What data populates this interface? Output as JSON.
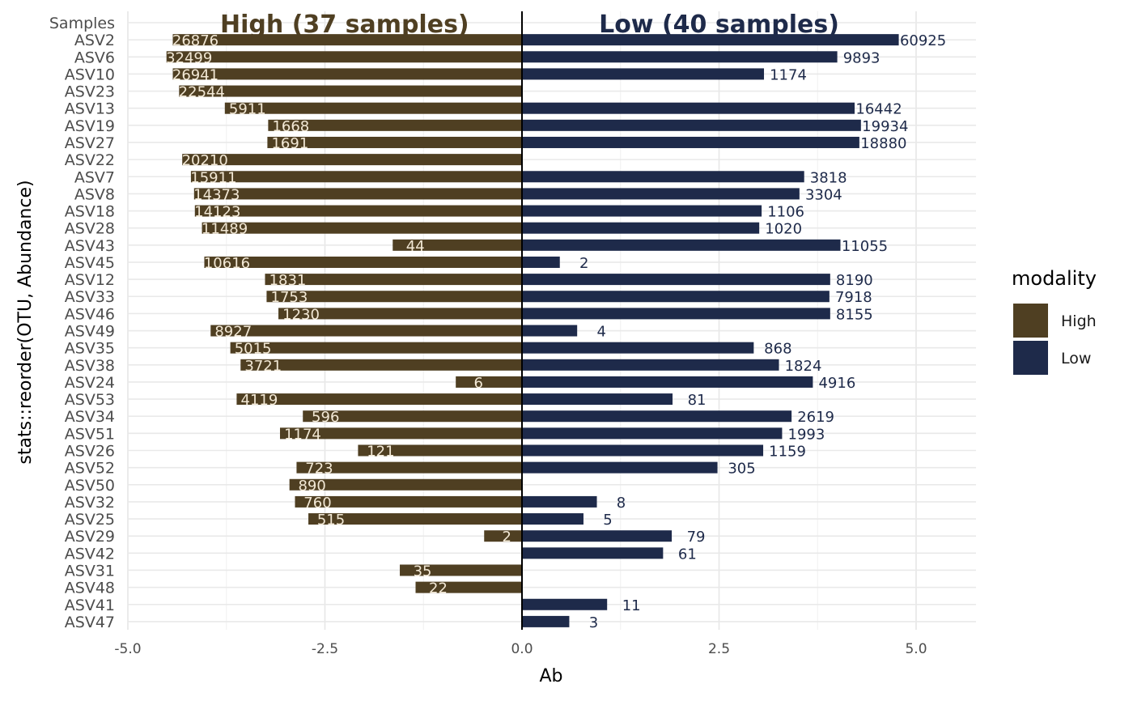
{
  "chart_data": {
    "type": "bar",
    "orientation": "horizontal-diverging",
    "xlabel": "Ab",
    "ylabel": "stats::reorder(OTU, Abundance)",
    "xlim": [
      -5.0,
      5.7
    ],
    "xticks": [
      "-5.0",
      "-2.5",
      "0.0",
      "2.5",
      "5.0"
    ],
    "xtick_values": [
      -5.0,
      -2.5,
      0.0,
      2.5,
      5.0
    ],
    "grid": true,
    "legend": {
      "title": "modality",
      "placement": "right",
      "entries": [
        {
          "label": "High",
          "color": "#4f3f22"
        },
        {
          "label": "Low",
          "color": "#1e2a4a"
        }
      ]
    },
    "annotations": [
      {
        "text": "High (37 samples)",
        "x": -2.25,
        "category": "Samples",
        "color": "#4f3f22"
      },
      {
        "text": "Low (40 samples)",
        "x": 2.5,
        "category": "Samples",
        "color": "#1e2a4a"
      }
    ],
    "categories": [
      "Samples",
      "ASV2",
      "ASV6",
      "ASV10",
      "ASV23",
      "ASV13",
      "ASV19",
      "ASV27",
      "ASV22",
      "ASV7",
      "ASV8",
      "ASV18",
      "ASV28",
      "ASV43",
      "ASV45",
      "ASV12",
      "ASV33",
      "ASV46",
      "ASV49",
      "ASV35",
      "ASV38",
      "ASV24",
      "ASV53",
      "ASV34",
      "ASV51",
      "ASV26",
      "ASV52",
      "ASV50",
      "ASV32",
      "ASV25",
      "ASV29",
      "ASV42",
      "ASV31",
      "ASV48",
      "ASV41",
      "ASV47"
    ],
    "series": [
      {
        "name": "High",
        "color": "#4f3f22",
        "values": [
          null,
          -4.43,
          -4.51,
          -4.43,
          -4.35,
          -3.77,
          -3.22,
          -3.23,
          -4.31,
          -4.2,
          -4.16,
          -4.15,
          -4.06,
          -1.64,
          -4.03,
          -3.26,
          -3.24,
          -3.09,
          -3.95,
          -3.7,
          -3.57,
          -0.84,
          -3.62,
          -2.78,
          -3.07,
          -2.08,
          -2.86,
          -2.95,
          -2.88,
          -2.71,
          -0.48,
          0,
          -1.55,
          -1.35,
          0,
          0
        ],
        "labels": [
          "",
          "26876",
          "32499",
          "26941",
          "22544",
          "5911",
          "1668",
          "1691",
          "20210",
          "15911",
          "14373",
          "14123",
          "11489",
          "44",
          "10616",
          "1831",
          "1753",
          "1230",
          "8927",
          "5015",
          "3721",
          "6",
          "4119",
          "596",
          "1174",
          "121",
          "723",
          "890",
          "760",
          "515",
          "2",
          "",
          "35",
          "22",
          "",
          ""
        ]
      },
      {
        "name": "Low",
        "color": "#1e2a4a",
        "values": [
          null,
          4.78,
          4.0,
          3.07,
          0,
          4.22,
          4.3,
          4.28,
          0,
          3.58,
          3.52,
          3.04,
          3.01,
          4.04,
          0.48,
          3.91,
          3.9,
          3.91,
          0.7,
          2.94,
          3.26,
          3.69,
          1.91,
          3.42,
          3.3,
          3.06,
          2.48,
          0,
          0.95,
          0.78,
          1.9,
          1.79,
          0,
          0,
          1.08,
          0.6
        ],
        "labels": [
          "",
          "60925",
          "9893",
          "1174",
          "",
          "16442",
          "19934",
          "18880",
          "",
          "3818",
          "3304",
          "1106",
          "1020",
          "11055",
          "2",
          "8190",
          "7918",
          "8155",
          "4",
          "868",
          "1824",
          "4916",
          "81",
          "2619",
          "1993",
          "1159",
          "305",
          "",
          "8",
          "5",
          "79",
          "61",
          "",
          "",
          "11",
          "3"
        ]
      }
    ]
  }
}
